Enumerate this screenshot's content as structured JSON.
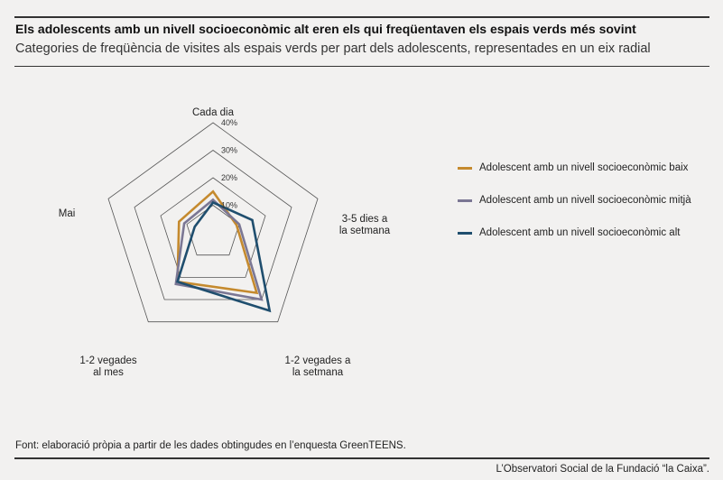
{
  "header": {
    "title": "Els adolescents amb un nivell socioeconòmic alt eren els qui freqüentaven els espais verds més sovint",
    "subtitle": "Categories de freqüència de visites als espais verds per part dels adolescents, representades en un eix radial"
  },
  "footer": {
    "source": "Font: elaboració pròpia a partir de les dades obtingudes en l’enquesta GreenTEENS.",
    "credit": "L’Observatori Social de la Fundació “la Caixa”."
  },
  "chart_data": {
    "type": "radar",
    "axes": [
      {
        "label": [
          "Cada dia"
        ]
      },
      {
        "label": [
          "3-5 dies a",
          "la setmana"
        ]
      },
      {
        "label": [
          "1-2 vegades a",
          "la setmana"
        ]
      },
      {
        "label": [
          "1-2 vegades",
          "al mes"
        ]
      },
      {
        "label": [
          "Mai"
        ]
      }
    ],
    "rlim": [
      0,
      40
    ],
    "ticks": [
      10,
      20,
      30,
      40
    ],
    "tick_labels": [
      "10%",
      "20%",
      "30%",
      "40%"
    ],
    "series": [
      {
        "name": "Adolescent amb un nivell socioeconòmic baix",
        "color": "#c58a2e",
        "values": [
          15,
          9,
          27,
          22,
          13
        ]
      },
      {
        "name": "Adolescent amb un nivell socioeconòmic mitjà",
        "color": "#7b7794",
        "values": [
          12,
          10,
          30,
          23,
          11
        ]
      },
      {
        "name": "Adolescent amb un nivell socioeconòmic alt",
        "color": "#1f4e6e",
        "values": [
          11,
          15,
          35,
          22,
          7
        ]
      }
    ],
    "legend_position": "right"
  }
}
